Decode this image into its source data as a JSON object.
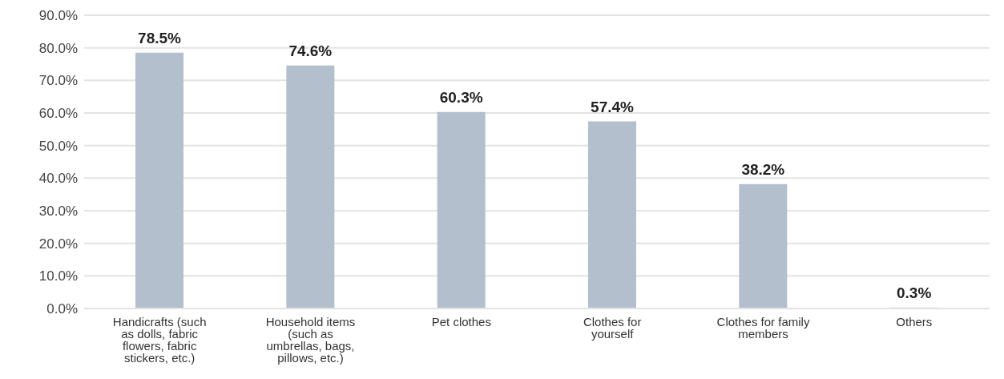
{
  "chart_data": {
    "type": "bar",
    "categories": [
      "Handicrafts (such as dolls, fabric flowers, fabric stickers, etc.)",
      "Household items (such as umbrellas, bags, pillows, etc.)",
      "Pet clothes",
      "Clothes for yourself",
      "Clothes for family members",
      "Others"
    ],
    "values": [
      78.5,
      74.6,
      60.3,
      57.4,
      38.2,
      0.3
    ],
    "value_labels": [
      "78.5%",
      "74.6%",
      "60.3%",
      "57.4%",
      "38.2%",
      "0.3%"
    ],
    "color": "#b3bfcd",
    "ylim": [
      0,
      90
    ],
    "yticks": [
      {
        "value": 0,
        "label": "0.0%"
      },
      {
        "value": 10,
        "label": "10.0%"
      },
      {
        "value": 20,
        "label": "20.0%"
      },
      {
        "value": 30,
        "label": "30.0%"
      },
      {
        "value": 40,
        "label": "40.0%"
      },
      {
        "value": 50,
        "label": "50.0%"
      },
      {
        "value": 60,
        "label": "60.0%"
      },
      {
        "value": 70,
        "label": "70.0%"
      },
      {
        "value": 80,
        "label": "80.0%"
      },
      {
        "value": 90,
        "label": "90.0%"
      }
    ],
    "grid": "y",
    "legend": false
  }
}
